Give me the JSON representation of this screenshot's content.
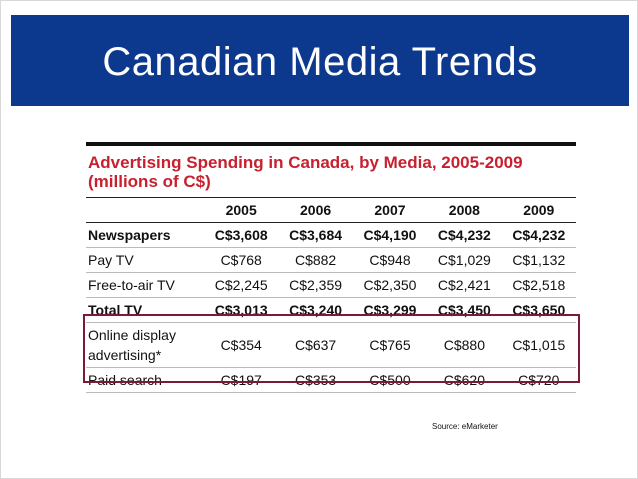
{
  "header": {
    "title": "Canadian Media Trends"
  },
  "table": {
    "title": "Advertising Spending in Canada, by Media, 2005-2009",
    "subtitle": "(millions of C$)",
    "columns": [
      "2005",
      "2006",
      "2007",
      "2008",
      "2009"
    ],
    "rows": [
      [
        "Newspapers",
        "C$3,608",
        "C$3,684",
        "C$4,190",
        "C$4,232",
        "C$4,232"
      ],
      [
        "Pay TV",
        "C$768",
        "C$882",
        "C$948",
        "C$1,029",
        "C$1,132"
      ],
      [
        "Free-to-air TV",
        "C$2,245",
        "C$2,359",
        "C$2,350",
        "C$2,421",
        "C$2,518"
      ],
      [
        "Total TV",
        "C$3,013",
        "C$3,240",
        "C$3,299",
        "C$3,450",
        "C$3,650"
      ],
      [
        "Online display advertising*",
        "C$354",
        "C$637",
        "C$765",
        "C$880",
        "C$1,015"
      ],
      [
        "Paid search",
        "C$197",
        "C$353",
        "C$500",
        "C$620",
        "C$720"
      ]
    ]
  },
  "source": "Source: eMarketer"
}
